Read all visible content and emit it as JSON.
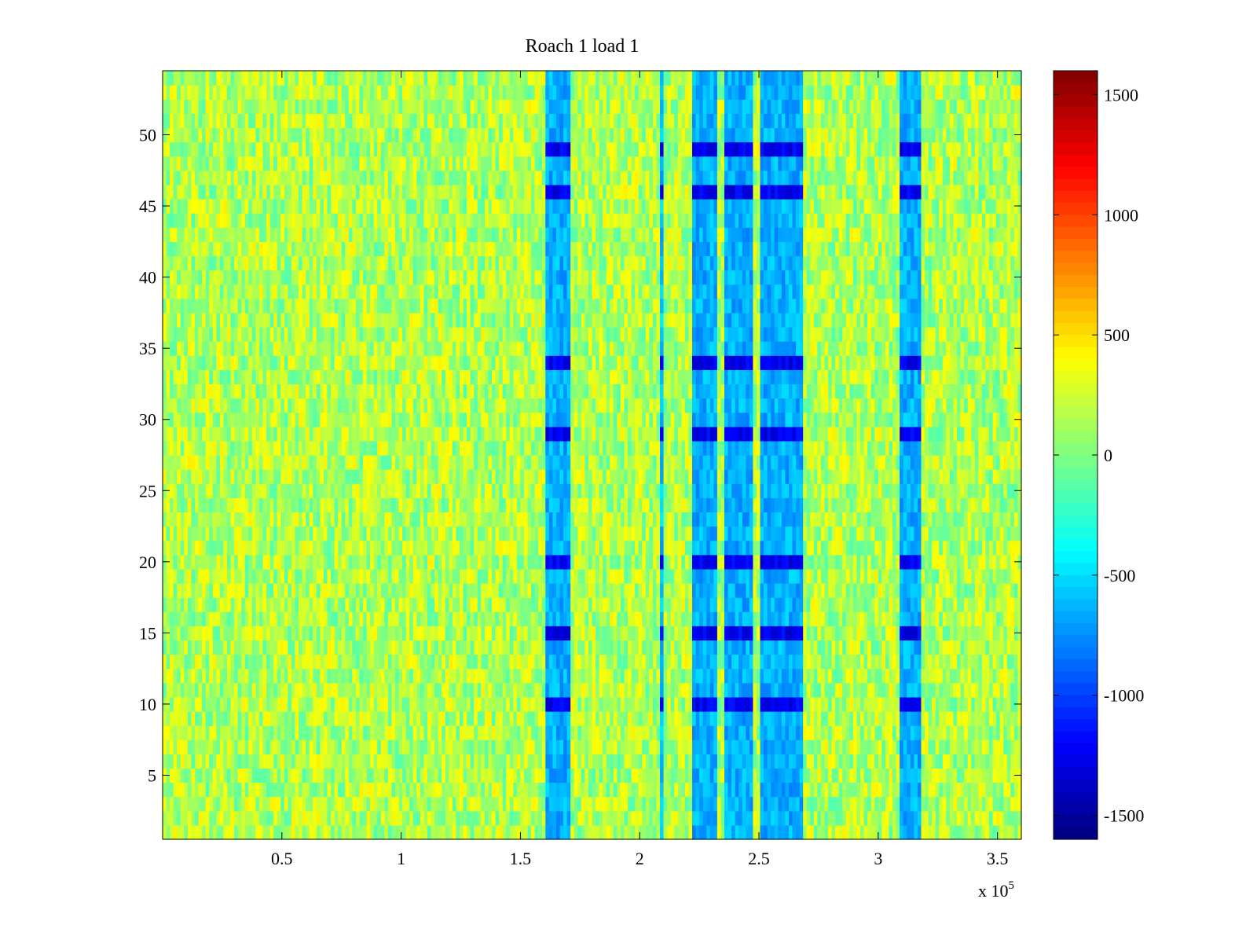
{
  "chart_data": {
    "type": "heatmap",
    "title": "Roach 1 load 1",
    "xlabel": "",
    "ylabel": "",
    "x_multiplier_label": "x 10",
    "x_multiplier_exponent": "5",
    "xlim": [
      0,
      360000
    ],
    "ylim": [
      0.5,
      54.5
    ],
    "n_rows": 54,
    "x_ticks": [
      {
        "value": 50000,
        "label": "0.5"
      },
      {
        "value": 100000,
        "label": "1"
      },
      {
        "value": 150000,
        "label": "1.5"
      },
      {
        "value": 200000,
        "label": "2"
      },
      {
        "value": 250000,
        "label": "2.5"
      },
      {
        "value": 300000,
        "label": "3"
      },
      {
        "value": 350000,
        "label": "3.5"
      }
    ],
    "y_ticks": [
      {
        "value": 5,
        "label": "5"
      },
      {
        "value": 10,
        "label": "10"
      },
      {
        "value": 15,
        "label": "15"
      },
      {
        "value": 20,
        "label": "20"
      },
      {
        "value": 25,
        "label": "25"
      },
      {
        "value": 30,
        "label": "30"
      },
      {
        "value": 35,
        "label": "35"
      },
      {
        "value": 40,
        "label": "40"
      },
      {
        "value": 45,
        "label": "45"
      },
      {
        "value": 50,
        "label": "50"
      }
    ],
    "colorbar": {
      "colormap": "jet",
      "clim": [
        -1600,
        1600
      ],
      "ticks": [
        {
          "value": 1500,
          "label": "1500"
        },
        {
          "value": 1000,
          "label": "1000"
        },
        {
          "value": 500,
          "label": "500"
        },
        {
          "value": 0,
          "label": "0"
        },
        {
          "value": -500,
          "label": "-500"
        },
        {
          "value": -1000,
          "label": "-1000"
        },
        {
          "value": -1500,
          "label": "-1500"
        }
      ]
    },
    "baseline_level": 150,
    "noise_amplitude": 300,
    "bands": [
      {
        "x_start": 160000,
        "x_end": 171000,
        "level": -650
      },
      {
        "x_start": 208000,
        "x_end": 210000,
        "level": -600
      },
      {
        "x_start": 222000,
        "x_end": 233000,
        "level": -650
      },
      {
        "x_start": 236000,
        "x_end": 247000,
        "level": -650
      },
      {
        "x_start": 250000,
        "x_end": 268000,
        "level": -650
      },
      {
        "x_start": 309000,
        "x_end": 318000,
        "level": -650
      }
    ],
    "strong_rows": [
      10,
      15,
      20,
      29,
      34,
      46,
      49
    ],
    "strong_level": -1250,
    "grid": false
  }
}
